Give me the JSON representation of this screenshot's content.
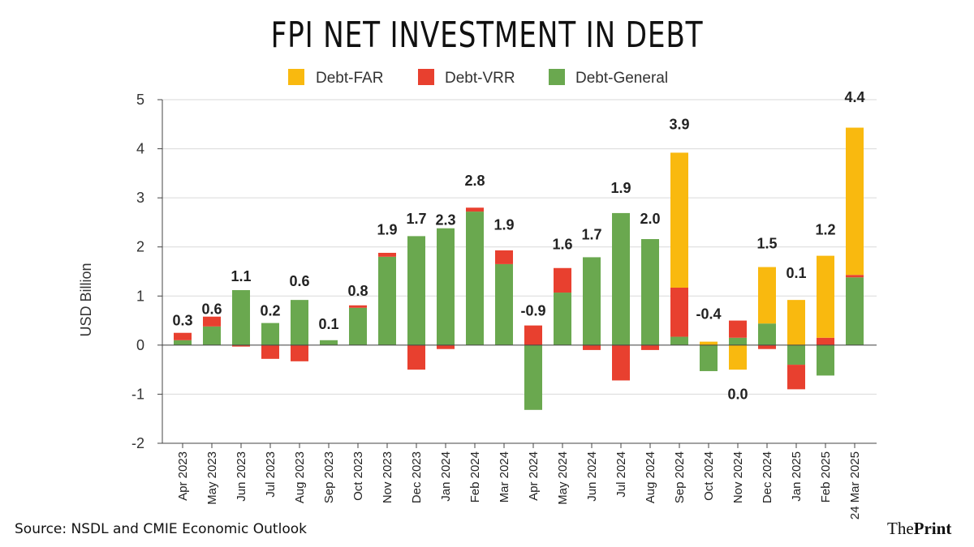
{
  "chart_data": {
    "type": "bar",
    "stacked": true,
    "title": "FPI NET INVESTMENT IN DEBT",
    "ylabel": "USD Billion",
    "xlabel": "",
    "ylim": [
      -2,
      5
    ],
    "yticks": [
      "5",
      "4",
      "3",
      "2",
      "1",
      "0",
      "-1",
      "-2"
    ],
    "grid": true,
    "legend_position": "top-center",
    "categories": [
      "Apr 2023",
      "May 2023",
      "Jun 2023",
      "Jul 2023",
      "Aug 2023",
      "Sep 2023",
      "Oct 2023",
      "Nov 2023",
      "Dec 2023",
      "Jan 2024",
      "Feb 2024",
      "Mar 2024",
      "Apr 2024",
      "May 2024",
      "Jun 2024",
      "Jul 2024",
      "Aug 2024",
      "Sep 2024",
      "Oct 2024",
      "Nov 2024",
      "Dec 2024",
      "Jan 2025",
      "Feb 2025",
      "24 Mar 2025"
    ],
    "series": [
      {
        "name": "Debt-FAR",
        "color": "#f9b90f",
        "values": [
          0,
          0,
          0,
          0,
          0,
          0,
          0,
          0,
          0,
          0,
          0,
          0,
          0,
          0,
          0,
          0,
          0,
          2.75,
          0.07,
          -0.5,
          1.15,
          0.92,
          1.67,
          3.0
        ]
      },
      {
        "name": "Debt-VRR",
        "color": "#e8402f",
        "values": [
          0.15,
          0.2,
          -0.03,
          -0.28,
          -0.33,
          0,
          0.05,
          0.08,
          -0.5,
          -0.08,
          0.08,
          0.28,
          0.4,
          0.5,
          -0.1,
          -0.72,
          -0.1,
          1.0,
          0,
          0.35,
          -0.08,
          -0.5,
          0.15,
          0.05
        ]
      },
      {
        "name": "Debt-General",
        "color": "#6aa84f",
        "values": [
          0.1,
          0.38,
          1.12,
          0.45,
          0.92,
          0.1,
          0.76,
          1.8,
          2.22,
          2.38,
          2.72,
          1.65,
          -1.32,
          1.07,
          1.79,
          2.69,
          2.16,
          0.17,
          -0.53,
          0.15,
          0.44,
          -0.4,
          -0.62,
          1.38
        ]
      }
    ],
    "totals_labels": [
      "0.3",
      "0.6",
      "1.1",
      "0.2",
      "0.6",
      "0.1",
      "0.8",
      "1.9",
      "1.7",
      "2.3",
      "2.8",
      "1.9",
      "-0.9",
      "1.6",
      "1.7",
      "1.9",
      "2.0",
      "3.9",
      "-0.4",
      "0.0",
      "1.5",
      "0.1",
      "1.2",
      "4.4"
    ],
    "totals_label_values": [
      0.5,
      0.73,
      1.4,
      0.7,
      1.3,
      0.43,
      1.1,
      2.35,
      2.57,
      2.55,
      3.35,
      2.45,
      0.7,
      2.05,
      2.25,
      3.2,
      2.57,
      4.5,
      0.63,
      -1.0,
      2.07,
      1.47,
      2.35,
      5.05
    ]
  },
  "footer": {
    "source": "Source: NSDL and CMIE Economic Outlook",
    "brand_part1": "The",
    "brand_part2": "Print"
  }
}
